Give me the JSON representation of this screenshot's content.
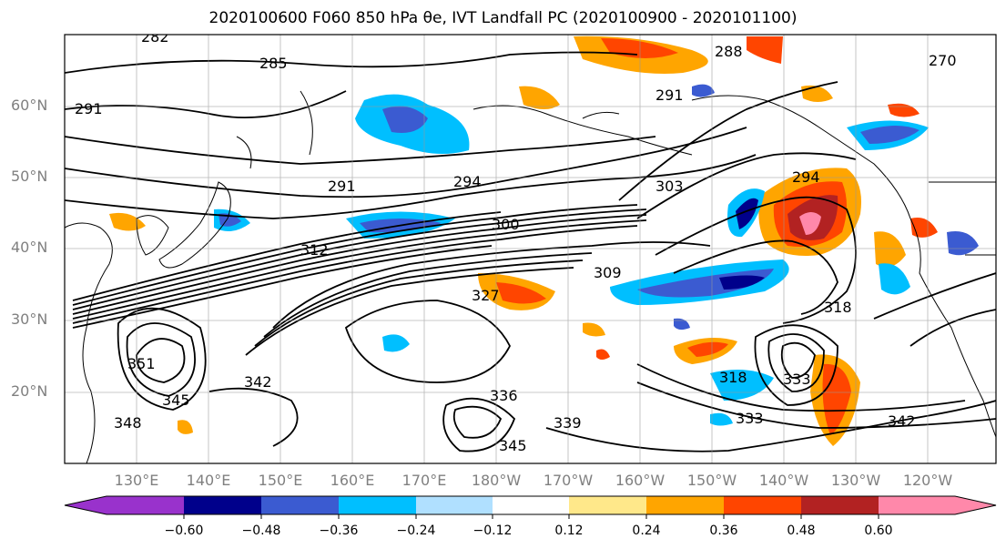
{
  "title": "2020100600 F060 850 hPa θe, IVT Landfall PC (2020100900 - 2020101100)",
  "lat_labels": [
    "60°N",
    "50°N",
    "40°N",
    "30°N",
    "20°N"
  ],
  "lon_labels": [
    "130°E",
    "140°E",
    "150°E",
    "160°E",
    "170°E",
    "180°W",
    "170°W",
    "160°W",
    "150°W",
    "140°W",
    "130°W",
    "120°W"
  ],
  "contour_labels": [
    "282",
    "285",
    "288",
    "291",
    "294",
    "297",
    "300",
    "303",
    "309",
    "312",
    "318",
    "327",
    "333",
    "336",
    "339",
    "342",
    "345",
    "348",
    "351",
    "270"
  ],
  "colorbar": {
    "tick_labels": [
      "−0.60",
      "−0.48",
      "−0.36",
      "−0.24",
      "−0.12",
      "0.12",
      "0.24",
      "0.36",
      "0.48",
      "0.60"
    ],
    "colors": [
      "#9932cc",
      "#00008b",
      "#3b5bd1",
      "#00bfff",
      "#b0e0ff",
      "#ffffff",
      "#ffe88a",
      "#ffa500",
      "#ff4500",
      "#b22222",
      "#ff88aa"
    ]
  }
}
